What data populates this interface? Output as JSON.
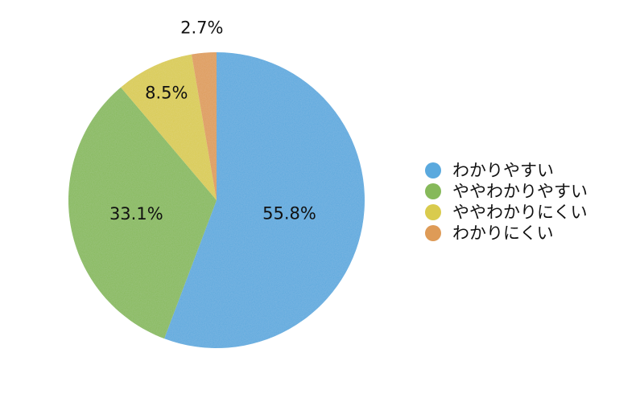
{
  "chart_data": {
    "type": "pie",
    "start": "top",
    "direction": "clockwise",
    "legend_position": "right",
    "slices": [
      {
        "label": "わかりやすい",
        "value": 55.8,
        "value_label": "55.8%",
        "color": "#5aa9de"
      },
      {
        "label": "ややわかりやすい",
        "value": 33.1,
        "value_label": "33.1%",
        "color": "#86b95a"
      },
      {
        "label": "ややわかりにくい",
        "value": 8.5,
        "value_label": "8.5%",
        "color": "#d9cb4d"
      },
      {
        "label": "わかりにくい",
        "value": 2.7,
        "value_label": "2.7%",
        "color": "#de9b57"
      }
    ]
  }
}
